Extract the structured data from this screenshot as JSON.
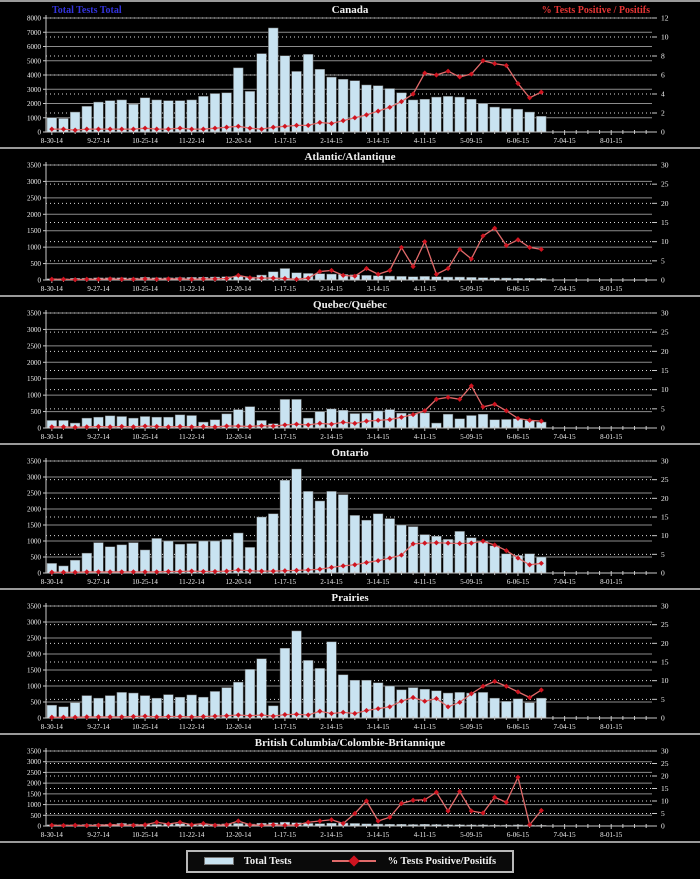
{
  "labels": {
    "left_axis": "Total Tests Total",
    "right_axis": "% Tests Positive / Positifs"
  },
  "legend": {
    "items": [
      {
        "label": "Total Tests",
        "swatch": "bar"
      },
      {
        "label": "% Tests Positive/Positifs",
        "swatch": "line-diamond"
      }
    ]
  },
  "colors": {
    "background": "#000000",
    "bar_fill": "#c9e3f1",
    "bar_border": "#6f6f6f",
    "line": "#e06a6a",
    "marker": "#cf1420",
    "grid_major": "#8c8c8c",
    "grid_dotted": "#dcdcdc",
    "axis": "#c8c8c8",
    "text": "#f0f0f0",
    "left_label": "#3333dd",
    "right_label": "#e43434",
    "separator": "#9a9a9a"
  },
  "x_axis": {
    "tick_labels": [
      "8-30-14",
      "9-27-14",
      "10-25-14",
      "11-22-14",
      "12-20-14",
      "1-17-15",
      "2-14-15",
      "3-14-15",
      "4-11-15",
      "5-09-15",
      "6-06-15",
      "7-04-15",
      "8-01-15"
    ],
    "ticks_every_n_weeks": 4,
    "total_slots": 52,
    "note": "weekly data, 43 reported weeks starting 8-30-14"
  },
  "chart_data": [
    {
      "id": "canada",
      "type": "bar+line",
      "title": "Canada",
      "left_axis": {
        "label": "Total Tests Total",
        "min": 0,
        "max": 8000,
        "step": 1000
      },
      "right_axis": {
        "label": "% Tests Positive / Positifs",
        "min": 0,
        "max": 12,
        "step": 2
      },
      "series": [
        {
          "name": "Total Tests",
          "type": "bar",
          "values": [
            1000,
            950,
            1400,
            1800,
            2100,
            2200,
            2250,
            1950,
            2400,
            2250,
            2200,
            2200,
            2250,
            2500,
            2700,
            2750,
            4500,
            2850,
            5500,
            7300,
            5350,
            4250,
            5450,
            4400,
            3850,
            3700,
            3600,
            3300,
            3250,
            3050,
            2750,
            2250,
            2300,
            2450,
            2500,
            2450,
            2300,
            2000,
            1750,
            1650,
            1600,
            1400,
            1100
          ]
        },
        {
          "name": "% Tests Positive/Positifs",
          "type": "line",
          "values": [
            0.3,
            0.3,
            0.2,
            0.3,
            0.3,
            0.3,
            0.3,
            0.3,
            0.4,
            0.3,
            0.3,
            0.4,
            0.3,
            0.3,
            0.4,
            0.5,
            0.6,
            0.4,
            0.3,
            0.5,
            0.6,
            0.7,
            0.7,
            1.0,
            0.9,
            1.2,
            1.5,
            1.8,
            2.2,
            2.6,
            3.2,
            4.0,
            6.2,
            6.0,
            6.4,
            5.8,
            6.1,
            7.5,
            7.2,
            7.0,
            5.1,
            3.6,
            4.2
          ]
        }
      ]
    },
    {
      "id": "atlantic",
      "type": "bar+line",
      "title": "Atlantic/Atlantique",
      "left_axis": {
        "min": 0,
        "max": 3500,
        "step": 500
      },
      "right_axis": {
        "min": 0,
        "max": 30,
        "step": 5
      },
      "series": [
        {
          "name": "Total Tests",
          "type": "bar",
          "values": [
            40,
            35,
            50,
            55,
            65,
            70,
            70,
            60,
            80,
            70,
            70,
            75,
            80,
            85,
            90,
            100,
            110,
            90,
            150,
            250,
            350,
            220,
            200,
            190,
            180,
            170,
            160,
            140,
            130,
            120,
            110,
            100,
            110,
            100,
            90,
            90,
            80,
            70,
            60,
            60,
            50,
            50,
            45
          ]
        },
        {
          "name": "% Tests Positive/Positifs",
          "type": "line",
          "values": [
            0.2,
            0.2,
            0.1,
            0.2,
            0.2,
            0.3,
            0.2,
            0.2,
            0.3,
            0.2,
            0.3,
            0.3,
            0.2,
            0.3,
            0.3,
            0.4,
            1.2,
            0.6,
            0.5,
            0.5,
            0.4,
            0.2,
            0.5,
            2.2,
            2.5,
            1.2,
            1.0,
            3.0,
            1.5,
            2.5,
            8.5,
            3.5,
            10.0,
            1.5,
            3.0,
            8.0,
            5.5,
            11.5,
            13.5,
            9.0,
            10.5,
            8.5,
            8.0
          ]
        }
      ]
    },
    {
      "id": "quebec",
      "type": "bar+line",
      "title": "Quebec/Québec",
      "left_axis": {
        "min": 0,
        "max": 3500,
        "step": 500
      },
      "right_axis": {
        "min": 0,
        "max": 30,
        "step": 5
      },
      "series": [
        {
          "name": "Total Tests",
          "type": "bar",
          "values": [
            230,
            230,
            150,
            300,
            330,
            370,
            350,
            300,
            350,
            330,
            330,
            400,
            380,
            180,
            250,
            430,
            560,
            650,
            230,
            130,
            870,
            870,
            300,
            500,
            580,
            540,
            440,
            450,
            520,
            560,
            450,
            430,
            460,
            150,
            420,
            280,
            380,
            420,
            250,
            260,
            280,
            230,
            180
          ]
        },
        {
          "name": "% Tests Positive/Positifs",
          "type": "line",
          "values": [
            0.3,
            0.3,
            0.2,
            0.3,
            0.4,
            0.3,
            0.4,
            0.3,
            0.5,
            0.4,
            0.3,
            0.4,
            0.3,
            0.4,
            0.3,
            0.5,
            0.5,
            0.4,
            0.6,
            0.5,
            0.8,
            1.0,
            0.8,
            1.2,
            1.0,
            1.5,
            1.2,
            1.8,
            2.0,
            2.2,
            2.8,
            3.5,
            4.5,
            7.5,
            8.0,
            7.5,
            11.0,
            5.5,
            6.2,
            4.5,
            2.5,
            2.0,
            1.8
          ]
        }
      ]
    },
    {
      "id": "ontario",
      "type": "bar+line",
      "title": "Ontario",
      "left_axis": {
        "min": 0,
        "max": 3500,
        "step": 500
      },
      "right_axis": {
        "min": 0,
        "max": 30,
        "step": 5
      },
      "series": [
        {
          "name": "Total Tests",
          "type": "bar",
          "values": [
            300,
            220,
            400,
            620,
            950,
            820,
            880,
            950,
            720,
            1080,
            1000,
            900,
            920,
            1000,
            1000,
            1050,
            1250,
            800,
            1750,
            1850,
            2900,
            3250,
            2550,
            2250,
            2550,
            2450,
            1800,
            1650,
            1850,
            1700,
            1500,
            1450,
            1200,
            1150,
            1050,
            1300,
            1100,
            1000,
            850,
            600,
            550,
            600,
            500
          ]
        },
        {
          "name": "% Tests Positive/Positifs",
          "type": "line",
          "values": [
            0.2,
            0.2,
            0.2,
            0.3,
            0.3,
            0.3,
            0.3,
            0.3,
            0.3,
            0.3,
            0.4,
            0.4,
            0.5,
            0.4,
            0.4,
            0.5,
            0.8,
            0.6,
            0.5,
            0.5,
            0.6,
            0.7,
            0.8,
            1.0,
            1.5,
            1.9,
            2.2,
            2.8,
            3.3,
            4.0,
            4.8,
            7.8,
            8.0,
            8.1,
            8.0,
            7.9,
            8.0,
            8.5,
            7.5,
            6.0,
            4.0,
            2.2,
            2.6
          ]
        }
      ]
    },
    {
      "id": "prairies",
      "type": "bar+line",
      "title": "Prairies",
      "left_axis": {
        "min": 0,
        "max": 3500,
        "step": 500
      },
      "right_axis": {
        "min": 0,
        "max": 30,
        "step": 5
      },
      "series": [
        {
          "name": "Total Tests",
          "type": "bar",
          "values": [
            400,
            350,
            480,
            700,
            620,
            700,
            800,
            780,
            700,
            620,
            730,
            650,
            720,
            650,
            830,
            950,
            1120,
            1520,
            1850,
            380,
            2180,
            2720,
            1800,
            1550,
            2380,
            1350,
            1180,
            1180,
            1100,
            1000,
            880,
            950,
            900,
            850,
            780,
            800,
            780,
            800,
            620,
            520,
            600,
            480,
            620
          ]
        },
        {
          "name": "% Tests Positive/Positifs",
          "type": "line",
          "values": [
            0.2,
            0.2,
            0.2,
            0.3,
            0.3,
            0.3,
            0.3,
            0.4,
            0.5,
            0.3,
            0.4,
            0.4,
            0.3,
            0.4,
            0.5,
            0.6,
            0.8,
            0.6,
            0.8,
            0.5,
            0.9,
            1.0,
            0.8,
            1.8,
            1.2,
            1.5,
            1.2,
            2.0,
            2.5,
            3.0,
            4.5,
            5.5,
            4.5,
            5.2,
            3.0,
            4.2,
            6.5,
            8.5,
            9.8,
            8.5,
            7.0,
            5.5,
            7.5
          ]
        }
      ]
    },
    {
      "id": "british-columbia",
      "type": "bar+line",
      "title": "British Columbia/Colombie-Britannique",
      "left_axis": {
        "min": 0,
        "max": 3500,
        "step": 500
      },
      "right_axis": {
        "min": 0,
        "max": 30,
        "step": 5
      },
      "series": [
        {
          "name": "Total Tests",
          "type": "bar",
          "values": [
            60,
            55,
            60,
            70,
            75,
            80,
            120,
            90,
            80,
            70,
            90,
            100,
            80,
            70,
            90,
            100,
            120,
            90,
            130,
            150,
            180,
            150,
            120,
            110,
            130,
            140,
            120,
            100,
            90,
            80,
            80,
            70,
            80,
            70,
            60,
            60,
            50,
            50,
            40,
            40,
            50,
            40,
            30
          ]
        },
        {
          "name": "% Tests Positive/Positifs",
          "type": "line",
          "values": [
            0.3,
            0.2,
            0.3,
            0.2,
            0.3,
            0.5,
            0.4,
            0.3,
            0.5,
            1.5,
            0.8,
            1.5,
            0.5,
            1.0,
            0.3,
            0.5,
            2.0,
            0.5,
            0.3,
            0.5,
            0.3,
            0.4,
            1.5,
            2.0,
            2.5,
            1.0,
            5.0,
            10.0,
            2.0,
            3.5,
            9.0,
            10.3,
            10.5,
            13.5,
            6.0,
            13.8,
            6.0,
            5.2,
            11.5,
            9.5,
            19.5,
            0.5,
            6.2
          ]
        }
      ]
    }
  ]
}
